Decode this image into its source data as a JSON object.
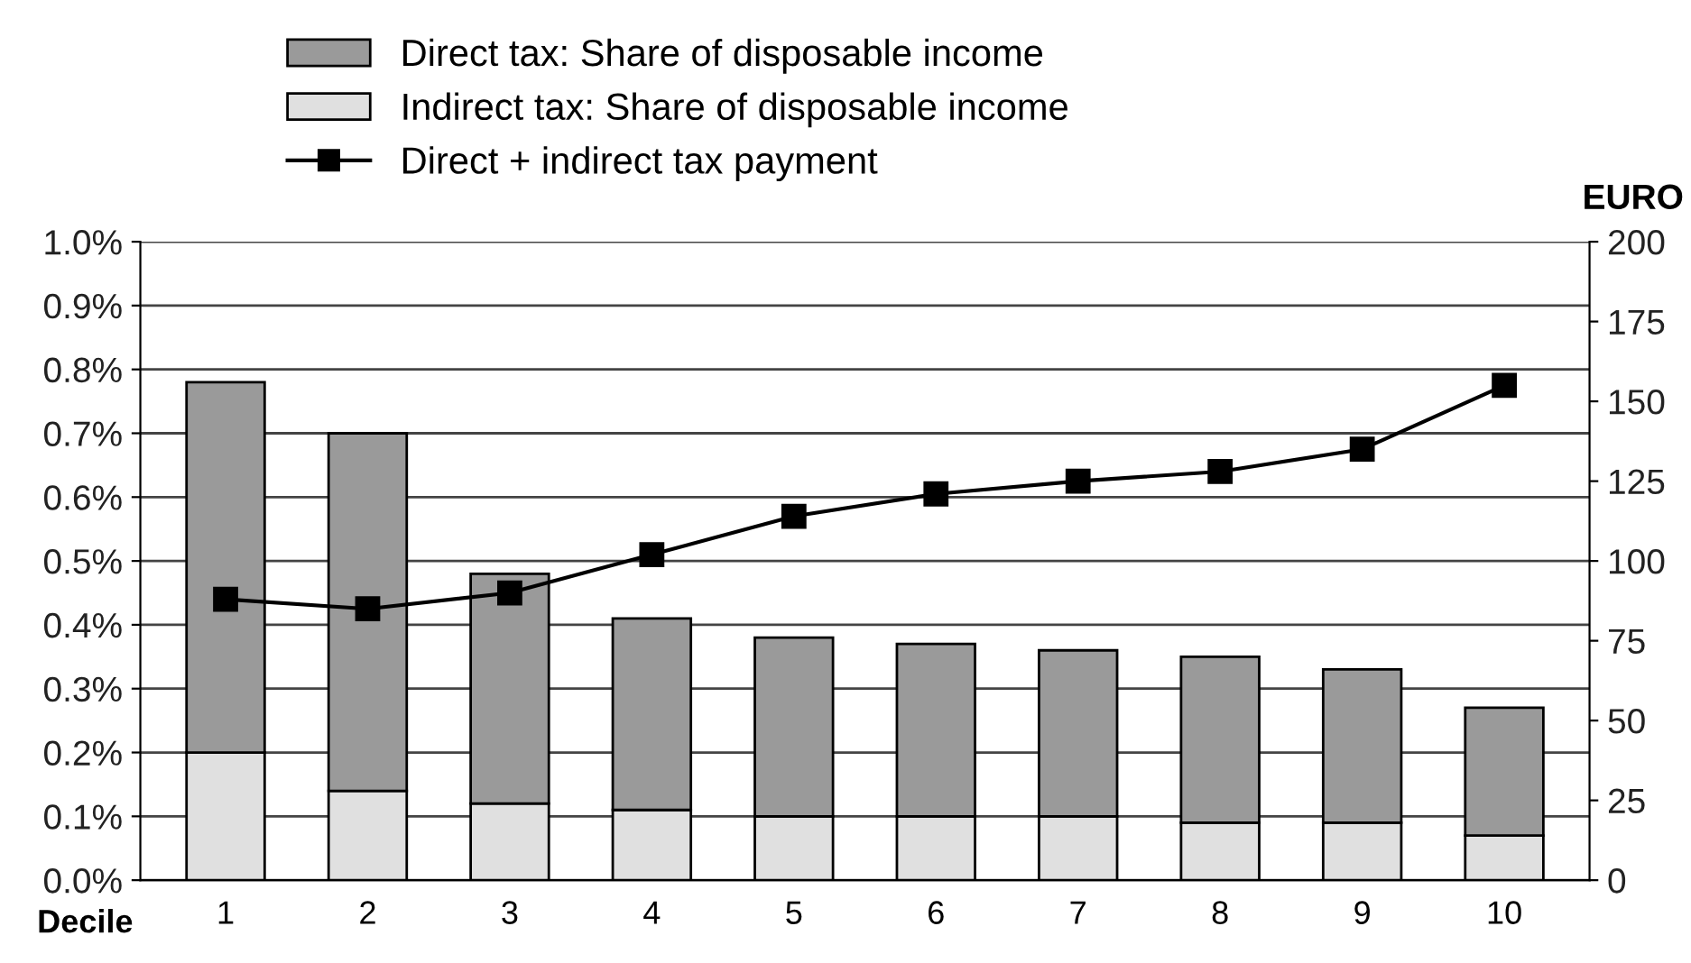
{
  "chart_data": {
    "type": "bar",
    "stacked": true,
    "xlabel": "Decile",
    "y2label": "EURO",
    "categories": [
      "1",
      "2",
      "3",
      "4",
      "5",
      "6",
      "7",
      "8",
      "9",
      "10"
    ],
    "series": [
      {
        "name": "Indirect tax: Share of disposable income",
        "color": "#e0e0e0",
        "values": [
          0.2,
          0.14,
          0.12,
          0.11,
          0.1,
          0.1,
          0.1,
          0.09,
          0.09,
          0.07
        ]
      },
      {
        "name": "Direct tax: Share of disposable income",
        "color": "#9a9a9a",
        "values": [
          0.58,
          0.56,
          0.36,
          0.3,
          0.28,
          0.27,
          0.26,
          0.26,
          0.24,
          0.2
        ]
      },
      {
        "name": "Direct + indirect tax payment",
        "type": "line",
        "axis": "y2",
        "color": "#000000",
        "marker": "square",
        "values": [
          88,
          85,
          90,
          102,
          114,
          121,
          125,
          128,
          135,
          155
        ]
      }
    ],
    "ylim": [
      0,
      1.0
    ],
    "yticks": [
      {
        "value": 0,
        "label": "0.0%"
      },
      {
        "value": 0.1,
        "label": "0.1%"
      },
      {
        "value": 0.2,
        "label": "0.2%"
      },
      {
        "value": 0.3,
        "label": "0.3%"
      },
      {
        "value": 0.4,
        "label": "0.4%"
      },
      {
        "value": 0.5,
        "label": "0.5%"
      },
      {
        "value": 0.6,
        "label": "0.6%"
      },
      {
        "value": 0.7,
        "label": "0.7%"
      },
      {
        "value": 0.8,
        "label": "0.8%"
      },
      {
        "value": 0.9,
        "label": "0.9%"
      },
      {
        "value": 1.0,
        "label": "1.0%"
      }
    ],
    "y2lim": [
      0,
      200
    ],
    "y2ticks": [
      0,
      25,
      50,
      75,
      100,
      125,
      150,
      175,
      200
    ],
    "grid": "y",
    "legend": "top"
  }
}
